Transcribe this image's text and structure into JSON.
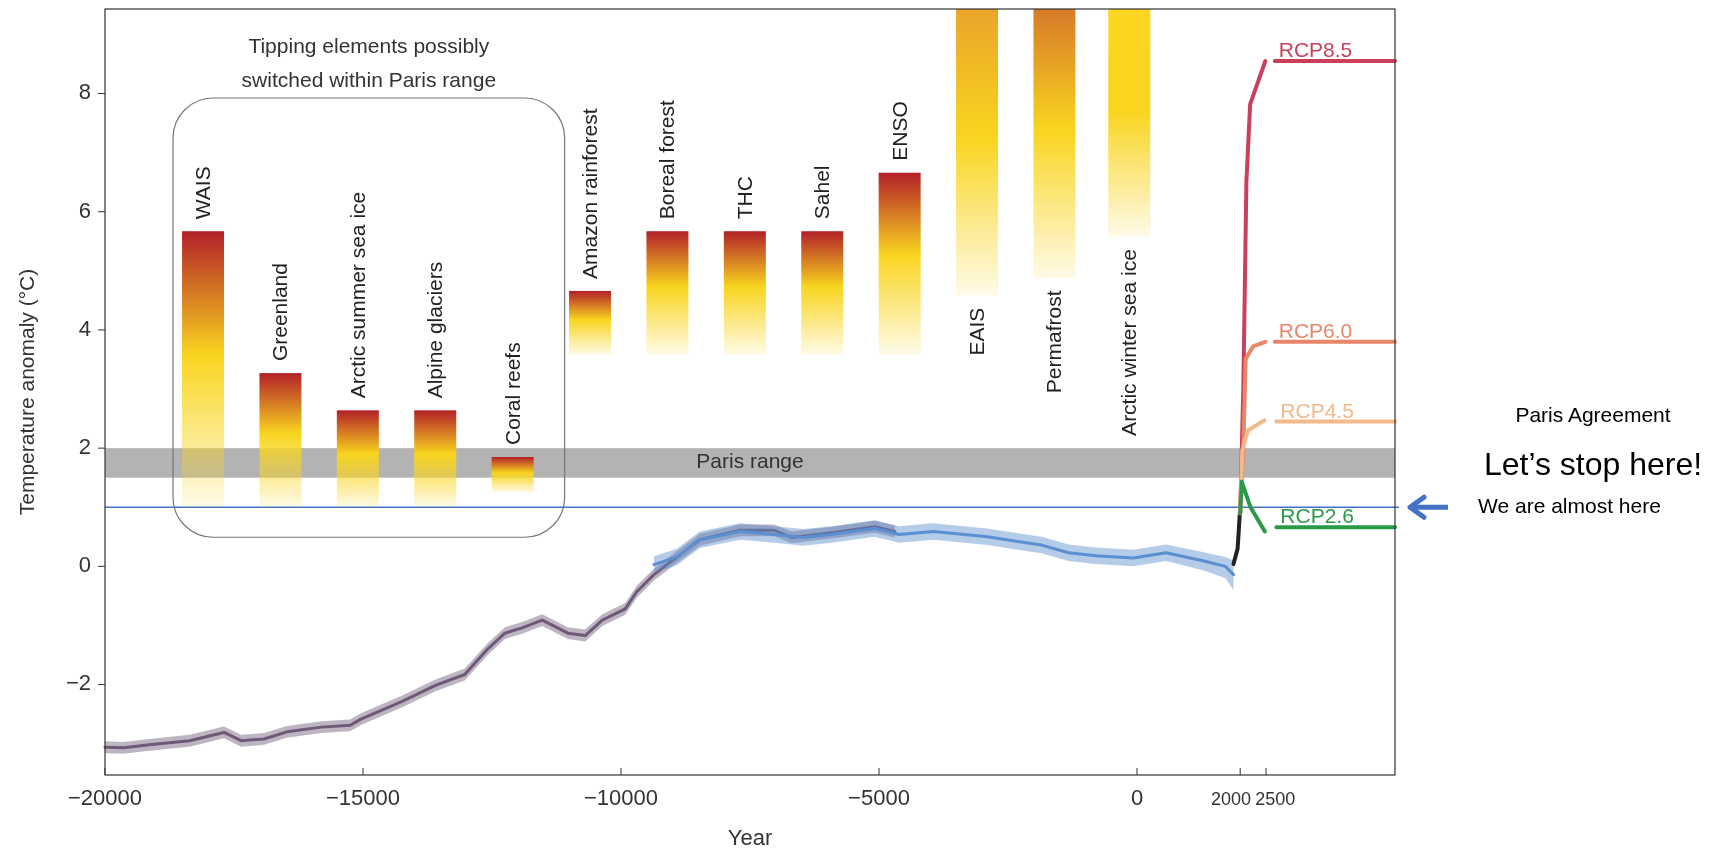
{
  "chart_data": {
    "type": "line",
    "xlabel": "Year",
    "ylabel": "Temperature anomaly (°C)",
    "xlim": [
      -20000,
      5000
    ],
    "ylim": [
      -3.53,
      9.43
    ],
    "xticks": [
      {
        "value": -20000,
        "label": "−20000"
      },
      {
        "value": -15000,
        "label": "−15000"
      },
      {
        "value": -10000,
        "label": "−10000"
      },
      {
        "value": -5000,
        "label": "−5000"
      },
      0,
      2000,
      2500
    ],
    "yticks": [
      {
        "value": -2,
        "label": "−2"
      },
      0,
      2,
      4,
      6,
      8
    ],
    "series": [
      {
        "color": "#6e5a78",
        "x": [
          -20000,
          -19640,
          -19140,
          -18360,
          -17695,
          -17362,
          -16917,
          -16473,
          -15806,
          -15251,
          -15029,
          -14251,
          -13584,
          -13028,
          -12584,
          -12250,
          -11917,
          -11528,
          -11028,
          -10695,
          -10362,
          -9917,
          -9695,
          -9362,
          -9139,
          -8473,
          -7694,
          -7028,
          -6695,
          -5917,
          -5083,
          -4694
        ],
        "values": [
          -3.06,
          -3.07,
          -3.02,
          -2.95,
          -2.81,
          -2.95,
          -2.92,
          -2.8,
          -2.72,
          -2.69,
          -2.58,
          -2.29,
          -2.01,
          -1.83,
          -1.4,
          -1.13,
          -1.04,
          -0.91,
          -1.13,
          -1.17,
          -0.91,
          -0.72,
          -0.43,
          -0.14,
          0.01,
          0.45,
          0.61,
          0.61,
          0.49,
          0.57,
          0.67,
          0.59
        ],
        "lower": [
          -3.16,
          -3.17,
          -3.12,
          -3.05,
          -2.91,
          -3.05,
          -3.02,
          -2.9,
          -2.82,
          -2.79,
          -2.68,
          -2.39,
          -2.11,
          -1.93,
          -1.5,
          -1.23,
          -1.14,
          -1.01,
          -1.23,
          -1.27,
          -1.01,
          -0.82,
          -0.53,
          -0.24,
          -0.09,
          0.35,
          0.51,
          0.51,
          0.39,
          0.47,
          0.57,
          0.49
        ],
        "upper": [
          -2.96,
          -2.97,
          -2.92,
          -2.85,
          -2.71,
          -2.85,
          -2.82,
          -2.7,
          -2.62,
          -2.59,
          -2.48,
          -2.19,
          -1.91,
          -1.73,
          -1.3,
          -1.03,
          -0.94,
          -0.81,
          -1.03,
          -1.07,
          -0.81,
          -0.62,
          -0.33,
          -0.04,
          0.11,
          0.55,
          0.71,
          0.71,
          0.59,
          0.67,
          0.77,
          0.69
        ]
      },
      {
        "color": "#5b8fcf",
        "x": [
          -9362,
          -8917,
          -8473,
          -7694,
          -7028,
          -6473,
          -5917,
          -5083,
          -4606,
          -3949,
          -2898,
          -1850,
          -1326,
          -801,
          -68,
          561,
          1295,
          1713,
          1870
        ],
        "values": [
          0.03,
          0.16,
          0.45,
          0.59,
          0.54,
          0.49,
          0.54,
          0.64,
          0.54,
          0.59,
          0.5,
          0.36,
          0.23,
          0.18,
          0.14,
          0.23,
          0.09,
          0.0,
          -0.14
        ],
        "lower": [
          -0.11,
          0.02,
          0.31,
          0.45,
          0.4,
          0.35,
          0.4,
          0.5,
          0.4,
          0.45,
          0.36,
          0.22,
          0.09,
          0.04,
          0.0,
          0.09,
          -0.07,
          -0.2,
          -0.4
        ],
        "upper": [
          0.17,
          0.3,
          0.59,
          0.73,
          0.68,
          0.63,
          0.68,
          0.78,
          0.68,
          0.73,
          0.64,
          0.5,
          0.37,
          0.32,
          0.28,
          0.37,
          0.24,
          0.16,
          0.1
        ]
      },
      {
        "color": "#222222",
        "x": [
          1870,
          1950,
          1994
        ],
        "values": [
          0.04,
          0.3,
          0.91
        ]
      },
      {
        "name": "RCP8.5",
        "color": "#c8405a",
        "x": [
          2000,
          2060,
          2120,
          2193,
          2487,
          2600,
          2670,
          5000
        ],
        "values": [
          0.9,
          3.0,
          6.5,
          7.82,
          8.55,
          null,
          8.55,
          8.55
        ]
      },
      {
        "name": "RCP6.0",
        "color": "#e8866a",
        "x": [
          2000,
          2060,
          2106,
          2250,
          2487,
          2600,
          2670,
          5000
        ],
        "values": [
          0.9,
          2.0,
          3.51,
          3.72,
          3.8,
          null,
          3.8,
          3.8
        ]
      },
      {
        "name": "RCP4.5",
        "color": "#f2b98a",
        "x": [
          2000,
          2040,
          2150,
          2468,
          2600,
          2700,
          5000
        ],
        "values": [
          0.9,
          1.96,
          2.3,
          2.47,
          null,
          2.45,
          2.45
        ]
      },
      {
        "name": "RCP2.6",
        "color": "#2a9a48",
        "x": [
          2000,
          2030,
          2200,
          2478,
          2600,
          2700,
          5000
        ],
        "values": [
          0.9,
          1.43,
          1.0,
          0.59,
          null,
          0.66,
          0.66
        ]
      },
      {
        "type": "bar",
        "color": "#b22028",
        "x": [
          -18100,
          -16600,
          -15100,
          -13600,
          -12100,
          -10600,
          -9100,
          -7600,
          -6100,
          -4600
        ],
        "base": [
          1.0,
          1.0,
          1.0,
          1.0,
          1.25,
          3.58,
          3.58,
          3.58,
          3.58,
          3.58
        ],
        "values": [
          4.67,
          2.27,
          1.64,
          1.64,
          0.6,
          1.08,
          2.09,
          2.09,
          2.09,
          3.08
        ]
      },
      {
        "type": "bar",
        "colors": [
          "#eaa52a",
          "#d67a28",
          "#fcd520"
        ],
        "x": [
          -3100,
          -1600,
          -150
        ],
        "base": [
          4.58,
          4.87,
          5.57
        ],
        "values": [
          4.85,
          4.56,
          3.86
        ]
      }
    ],
    "bands": [
      {
        "axis": "y",
        "from": 1.5,
        "to": 2.0,
        "label": "Paris range",
        "color": "#b3b3b3"
      }
    ],
    "ref_lines": [
      {
        "axis": "y",
        "value": 1.0,
        "color": "#4472c4"
      }
    ],
    "annotations": [
      "Tipping elements possibly switched within Paris range",
      "Paris Agreement",
      "Let’s stop here!",
      "We are almost here",
      {
        "text": "WAIS",
        "x": -18100,
        "y": 5.67
      },
      {
        "text": "Greenland",
        "x": -16600,
        "y": 3.27
      },
      {
        "text": "Arctic summer sea ice",
        "x": -15100,
        "y": 2.64
      },
      {
        "text": "Alpine glaciers",
        "x": -13600,
        "y": 2.64
      },
      {
        "text": "Coral reefs",
        "x": -12100,
        "y": 1.85
      },
      {
        "text": "Amazon rainforest",
        "x": -10600,
        "y": 4.66
      },
      {
        "text": "Boreal forest",
        "x": -9100,
        "y": 5.67
      },
      {
        "text": "THC",
        "x": -7600,
        "y": 5.67
      },
      {
        "text": "Sahel",
        "x": -6100,
        "y": 5.67
      },
      {
        "text": "ENSO",
        "x": -4600,
        "y": 6.66
      },
      {
        "text": "EAIS",
        "x": -3100,
        "y": 4.58
      },
      {
        "text": "Permafrost",
        "x": -1600,
        "y": 4.87
      },
      {
        "text": "Arctic winter sea ice",
        "x": -150,
        "y": 5.57
      }
    ]
  }
}
